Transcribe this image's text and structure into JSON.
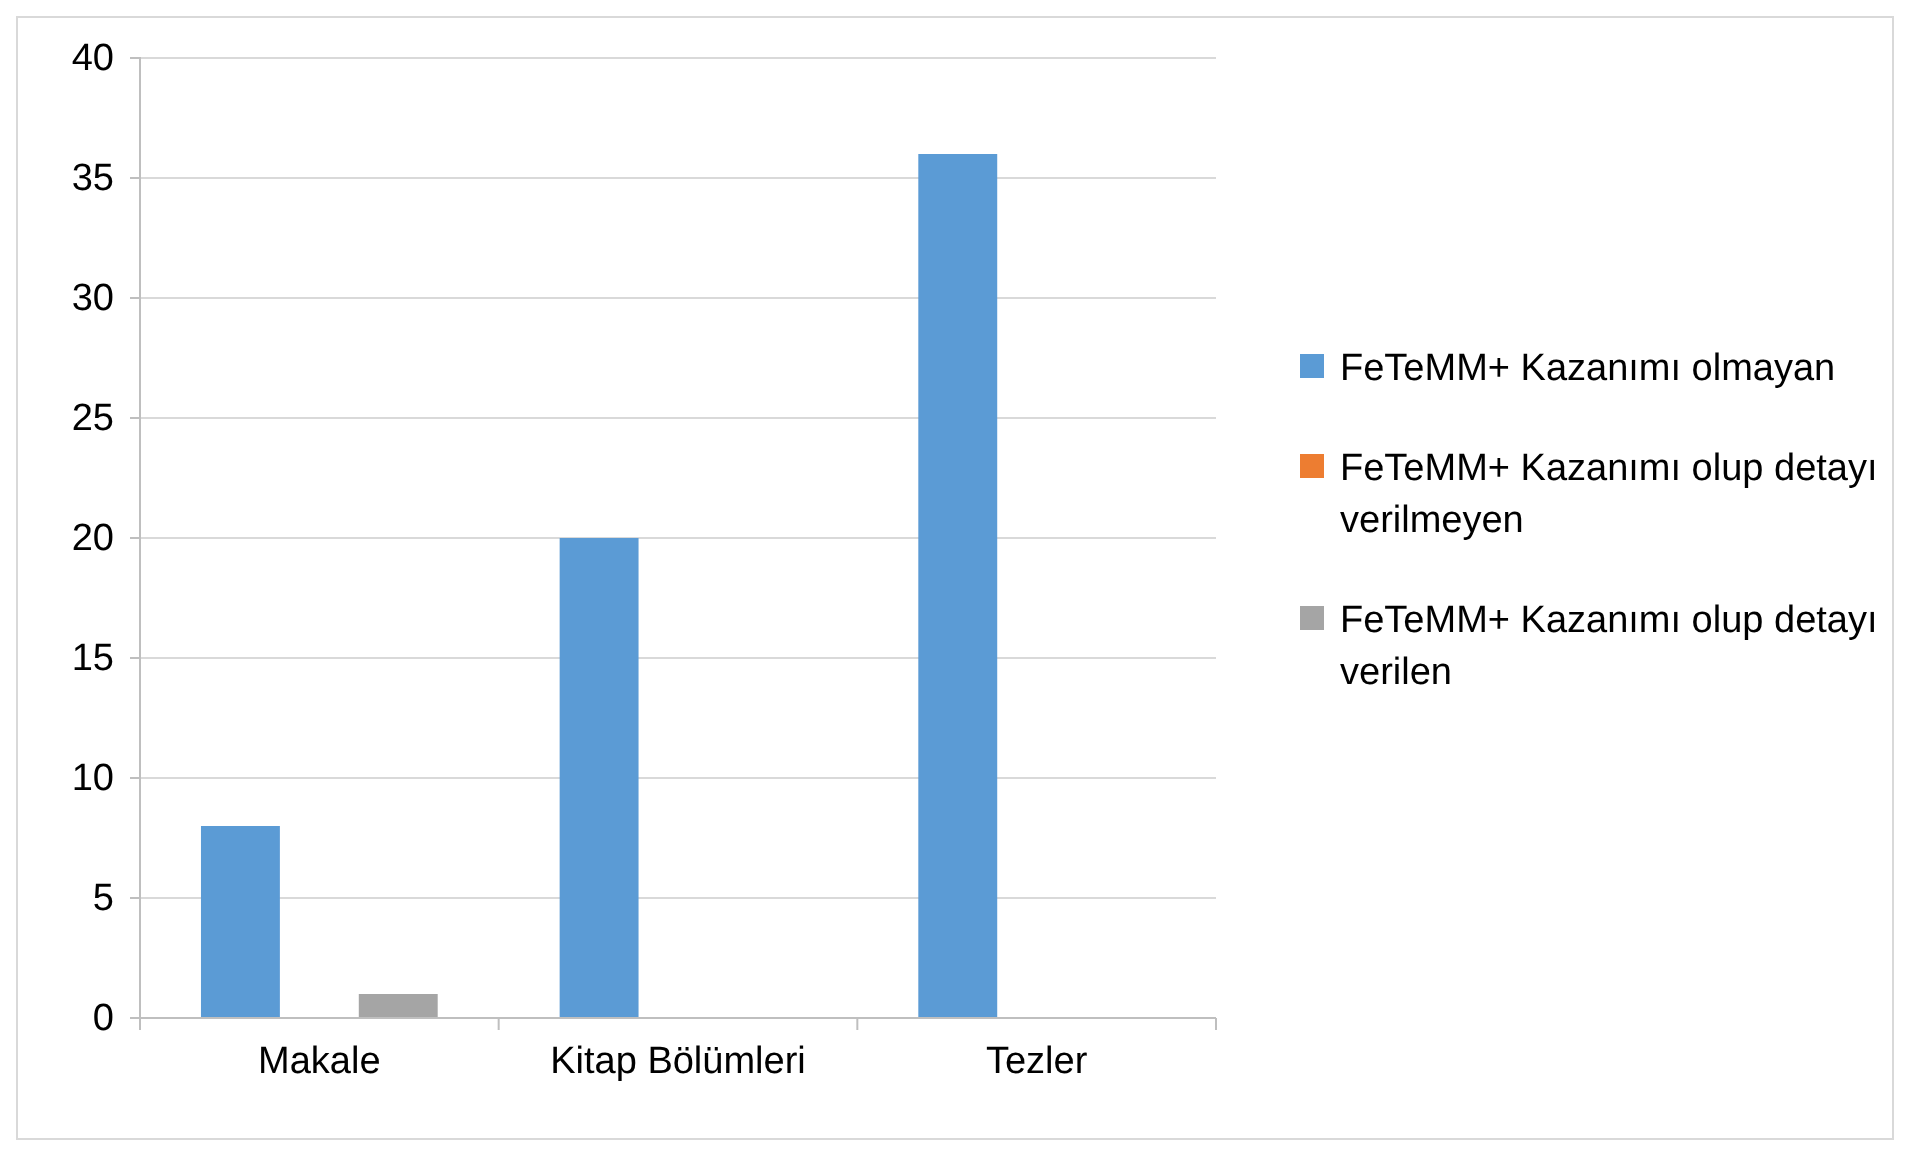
{
  "chart_data": {
    "type": "bar",
    "categories": [
      "Makale",
      "Kitap Bölümleri",
      "Tezler"
    ],
    "series": [
      {
        "name": "FeTeMM+ Kazanımı olmayan",
        "color": "#5b9bd5",
        "values": [
          8,
          20,
          36
        ]
      },
      {
        "name": "FeTeMM+ Kazanımı olup detayı verilmeyen",
        "color": "#ed7d31",
        "values": [
          0,
          0,
          0
        ]
      },
      {
        "name": "FeTeMM+ Kazanımı olup detayı verilen",
        "color": "#a5a5a5",
        "values": [
          1,
          0,
          0
        ]
      }
    ],
    "ylim": [
      0,
      40
    ],
    "yticks": [
      0,
      5,
      10,
      15,
      20,
      25,
      30,
      35,
      40
    ],
    "grid": "y",
    "legend": "right"
  }
}
